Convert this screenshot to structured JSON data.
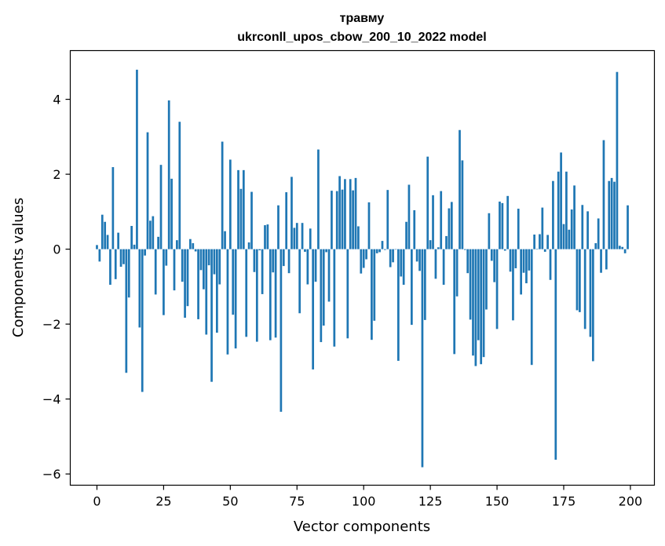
{
  "chart_data": {
    "type": "bar",
    "title": "травму",
    "subtitle": "ukrconll_upos_cbow_200_10_2022 model",
    "xlabel": "Vector components",
    "ylabel": "Components values",
    "xlim": [
      -10,
      209
    ],
    "ylim": [
      -6.3,
      5.3
    ],
    "xticks": [
      0,
      25,
      50,
      75,
      100,
      125,
      150,
      175,
      200
    ],
    "yticks": [
      -6,
      -4,
      -2,
      0,
      2,
      4
    ],
    "ytick_labels": [
      "−6",
      "−4",
      "−2",
      "0",
      "2",
      "4"
    ],
    "grid": false,
    "legend": "none",
    "bar_color": "#1f77b4",
    "values": [
      0.11,
      -0.33,
      0.92,
      0.73,
      0.38,
      -0.95,
      2.19,
      -0.8,
      0.44,
      -0.47,
      -0.4,
      -3.3,
      -1.29,
      0.62,
      0.12,
      4.79,
      -2.09,
      -3.81,
      -0.17,
      3.12,
      0.76,
      0.88,
      -1.21,
      0.33,
      2.25,
      -1.76,
      -0.44,
      3.97,
      1.88,
      -1.1,
      0.24,
      3.4,
      -0.87,
      -1.83,
      -1.52,
      0.27,
      0.16,
      -0.06,
      -1.87,
      -0.56,
      -1.07,
      -2.28,
      -0.43,
      -3.54,
      -0.67,
      -2.23,
      -0.94,
      2.87,
      0.48,
      -2.81,
      2.39,
      -1.75,
      -2.65,
      2.11,
      1.61,
      2.11,
      -2.34,
      0.18,
      1.53,
      -0.61,
      -2.47,
      -0.03,
      -1.2,
      0.64,
      0.66,
      -2.43,
      -0.62,
      -2.36,
      1.17,
      -4.34,
      -0.45,
      1.52,
      -0.64,
      1.93,
      0.57,
      0.7,
      -1.71,
      0.7,
      -0.07,
      -0.94,
      0.55,
      -3.21,
      -0.87,
      2.66,
      -2.48,
      -2.04,
      -0.08,
      -1.4,
      1.56,
      -2.6,
      1.55,
      1.95,
      1.59,
      1.87,
      -2.38,
      1.87,
      1.57,
      1.9,
      0.61,
      -0.65,
      -0.5,
      -0.27,
      1.25,
      -2.42,
      -1.91,
      -0.11,
      -0.08,
      0.22,
      -0.02,
      1.58,
      -0.48,
      -0.35,
      -0.01,
      -2.98,
      -0.73,
      -0.95,
      0.73,
      1.72,
      -2.02,
      1.04,
      -0.33,
      -0.58,
      -5.82,
      -1.89,
      2.47,
      0.24,
      1.44,
      -0.79,
      0.05,
      1.55,
      -0.95,
      0.35,
      1.09,
      1.26,
      -2.8,
      -1.26,
      3.18,
      2.37,
      -0.02,
      -0.64,
      -1.88,
      -2.84,
      -3.12,
      -2.43,
      -3.07,
      -2.88,
      -1.61,
      0.96,
      -0.31,
      -0.88,
      -2.13,
      1.27,
      1.23,
      -0.04,
      1.42,
      -0.6,
      -1.9,
      -0.51,
      1.08,
      -1.21,
      -0.63,
      -0.91,
      -0.57,
      -3.09,
      0.39,
      0.01,
      0.4,
      1.11,
      -0.07,
      0.38,
      -0.82,
      1.82,
      -5.62,
      2.07,
      2.58,
      0.67,
      2.07,
      0.52,
      1.06,
      1.7,
      -1.63,
      -1.68,
      1.18,
      -2.13,
      1.01,
      -2.34,
      -2.99,
      0.16,
      0.82,
      -0.63,
      2.91,
      -0.54,
      1.82,
      1.9,
      1.8,
      4.73,
      0.09,
      0.06,
      -0.11,
      1.17
    ]
  }
}
